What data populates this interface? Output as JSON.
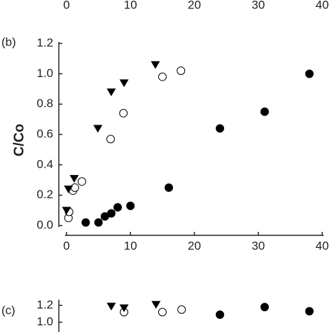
{
  "chart_data": [
    {
      "type": "scatter",
      "xlim": [
        0,
        40
      ],
      "xticks": [
        0,
        10,
        20,
        30,
        40
      ],
      "series": []
    },
    {
      "type": "scatter",
      "panel_label": "(b)",
      "y_label": "C/Co",
      "xlim": [
        0,
        40
      ],
      "xticks": [
        0,
        10,
        20,
        30,
        40
      ],
      "ylim": [
        0,
        1.2
      ],
      "yticks": [
        {
          "value": 0,
          "label": "0.0"
        },
        0.2,
        0.4,
        0.6,
        0.8,
        {
          "value": 1,
          "label": "1.0"
        },
        1.2
      ],
      "series": [
        {
          "marker": "circle-filled",
          "color": "#000000",
          "x": [
            3,
            5,
            6,
            7,
            8,
            10,
            16,
            24,
            31,
            38
          ],
          "values": [
            0.02,
            0.02,
            0.06,
            0.08,
            0.12,
            0.13,
            0.25,
            0.64,
            0.75,
            1.0
          ]
        },
        {
          "marker": "circle-open",
          "color": "#000000",
          "x": [
            0.3,
            0.4,
            1,
            1.3,
            2.4,
            6.9,
            8.9,
            15,
            17.9
          ],
          "values": [
            0.05,
            0.09,
            0.23,
            0.25,
            0.29,
            0.57,
            0.74,
            0.98,
            1.02
          ]
        },
        {
          "marker": "triangle-down",
          "color": "#000000",
          "x": [
            0,
            0.3,
            1.2,
            4.9,
            7,
            9,
            13.9
          ],
          "values": [
            0.1,
            0.24,
            0.31,
            0.64,
            0.88,
            0.94,
            1.06
          ]
        }
      ]
    },
    {
      "type": "scatter",
      "panel_label": "(c)",
      "xlim": [
        0,
        40
      ],
      "ylim": [
        0.95,
        1.25
      ],
      "yticks": [
        {
          "value": 1,
          "label": "1.0"
        },
        1.2
      ],
      "series": [
        {
          "marker": "circle-filled",
          "color": "#000000",
          "x": [
            24,
            31,
            38
          ],
          "values": [
            1.09,
            1.18,
            1.13
          ]
        },
        {
          "marker": "circle-open",
          "color": "#000000",
          "x": [
            9,
            15,
            18
          ],
          "values": [
            1.12,
            1.12,
            1.15
          ]
        },
        {
          "marker": "triangle-down",
          "color": "#000000",
          "x": [
            7,
            9,
            14
          ],
          "values": [
            1.19,
            1.17,
            1.21
          ]
        }
      ]
    }
  ]
}
